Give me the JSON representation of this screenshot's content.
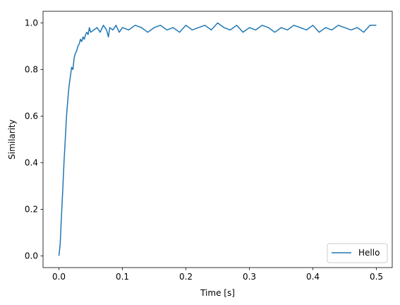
{
  "chart_data": {
    "type": "line",
    "xlabel": "Time [s]",
    "ylabel": "Similarity",
    "xlim": [
      -0.025,
      0.525
    ],
    "ylim": [
      -0.05,
      1.05
    ],
    "xticks": [
      0.0,
      0.1,
      0.2,
      0.3,
      0.4,
      0.5
    ],
    "xtick_labels": [
      "0.0",
      "0.1",
      "0.2",
      "0.3",
      "0.4",
      "0.5"
    ],
    "yticks": [
      0.0,
      0.2,
      0.4,
      0.6,
      0.8,
      1.0
    ],
    "ytick_labels": [
      "0.0",
      "0.2",
      "0.4",
      "0.6",
      "0.8",
      "1.0"
    ],
    "grid": false,
    "legend_position": "lower-right",
    "series": [
      {
        "name": "Hello",
        "color": "#1f77b4",
        "x": [
          0.0,
          0.002,
          0.004,
          0.006,
          0.008,
          0.01,
          0.012,
          0.014,
          0.016,
          0.018,
          0.02,
          0.022,
          0.024,
          0.026,
          0.028,
          0.03,
          0.032,
          0.034,
          0.036,
          0.038,
          0.04,
          0.042,
          0.044,
          0.046,
          0.048,
          0.05,
          0.055,
          0.06,
          0.065,
          0.07,
          0.075,
          0.078,
          0.08,
          0.085,
          0.09,
          0.095,
          0.1,
          0.11,
          0.12,
          0.13,
          0.14,
          0.15,
          0.16,
          0.17,
          0.18,
          0.19,
          0.2,
          0.21,
          0.22,
          0.23,
          0.24,
          0.25,
          0.26,
          0.27,
          0.28,
          0.29,
          0.3,
          0.31,
          0.32,
          0.33,
          0.34,
          0.35,
          0.36,
          0.37,
          0.38,
          0.39,
          0.4,
          0.41,
          0.42,
          0.43,
          0.44,
          0.45,
          0.46,
          0.47,
          0.48,
          0.49,
          0.5
        ],
        "y": [
          0.0,
          0.05,
          0.17,
          0.28,
          0.4,
          0.5,
          0.6,
          0.67,
          0.73,
          0.77,
          0.81,
          0.8,
          0.85,
          0.87,
          0.88,
          0.9,
          0.91,
          0.93,
          0.92,
          0.94,
          0.93,
          0.95,
          0.96,
          0.95,
          0.98,
          0.96,
          0.97,
          0.98,
          0.96,
          0.99,
          0.97,
          0.94,
          0.98,
          0.97,
          0.99,
          0.96,
          0.98,
          0.97,
          0.99,
          0.98,
          0.96,
          0.98,
          0.99,
          0.97,
          0.98,
          0.96,
          0.99,
          0.97,
          0.98,
          0.99,
          0.97,
          1.0,
          0.98,
          0.97,
          0.99,
          0.96,
          0.98,
          0.97,
          0.99,
          0.98,
          0.96,
          0.98,
          0.97,
          0.99,
          0.98,
          0.97,
          0.99,
          0.96,
          0.98,
          0.97,
          0.99,
          0.98,
          0.97,
          0.98,
          0.96,
          0.99,
          0.99
        ]
      }
    ]
  }
}
